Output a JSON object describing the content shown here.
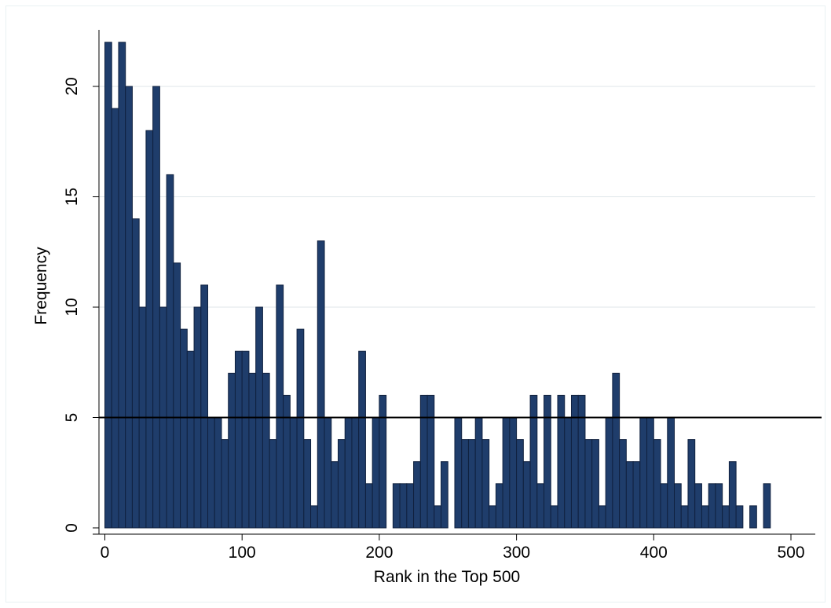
{
  "chart_data": {
    "type": "bar",
    "title": "",
    "xlabel": "Rank in the Top 500",
    "ylabel": "Frequency",
    "bin_width": 5,
    "bin_starts": [
      0,
      5,
      10,
      15,
      20,
      25,
      30,
      35,
      40,
      45,
      50,
      55,
      60,
      65,
      70,
      75,
      80,
      85,
      90,
      95,
      100,
      105,
      110,
      115,
      120,
      125,
      130,
      135,
      140,
      145,
      150,
      155,
      160,
      165,
      170,
      175,
      180,
      185,
      190,
      195,
      200,
      205,
      210,
      215,
      220,
      225,
      230,
      235,
      240,
      245,
      250,
      255,
      260,
      265,
      270,
      275,
      280,
      285,
      290,
      295,
      300,
      305,
      310,
      315,
      320,
      325,
      330,
      335,
      340,
      345,
      350,
      355,
      360,
      365,
      370,
      375,
      380,
      385,
      390,
      395,
      400,
      405,
      410,
      415,
      420,
      425,
      430,
      435,
      440,
      445,
      450,
      455,
      460,
      465,
      470,
      475,
      480,
      485,
      490,
      495
    ],
    "values": [
      22,
      19,
      22,
      20,
      14,
      10,
      18,
      20,
      10,
      16,
      12,
      9,
      8,
      10,
      11,
      5,
      5,
      4,
      7,
      8,
      8,
      7,
      10,
      7,
      4,
      11,
      6,
      5,
      9,
      4,
      1,
      13,
      5,
      3,
      4,
      5,
      5,
      8,
      2,
      5,
      6,
      0,
      2,
      2,
      2,
      3,
      6,
      6,
      1,
      3,
      0,
      5,
      4,
      4,
      5,
      4,
      1,
      2,
      5,
      5,
      4,
      3,
      6,
      2,
      6,
      1,
      6,
      5,
      6,
      6,
      4,
      4,
      1,
      5,
      7,
      4,
      3,
      3,
      5,
      5,
      4,
      2,
      5,
      2,
      1,
      4,
      2,
      1,
      2,
      2,
      1,
      3,
      1,
      0,
      1,
      0,
      2,
      0,
      0,
      0
    ],
    "xlim": [
      0,
      500
    ],
    "ylim": [
      0,
      22
    ],
    "xticks": [
      "0",
      "100",
      "200",
      "300",
      "400",
      "500"
    ],
    "yticks": [
      "0",
      "5",
      "10",
      "15",
      "20"
    ],
    "reference_line_y": 5,
    "grid": "horizontal",
    "colors": {
      "bar_fill": "#1f3d6b",
      "bar_edge": "#10213f",
      "grid": "#dfe6e9",
      "reference_line": "#000000"
    }
  }
}
